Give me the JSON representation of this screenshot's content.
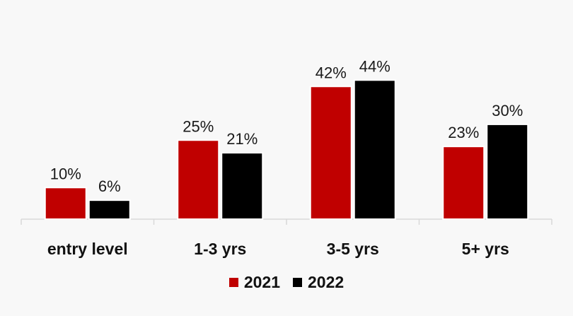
{
  "chart_data": {
    "type": "bar",
    "categories": [
      "entry level",
      "1-3 yrs",
      "3-5 yrs",
      "5+ yrs"
    ],
    "series": [
      {
        "name": "2021",
        "values": [
          10,
          25,
          42,
          23
        ],
        "labels": [
          "10%",
          "25%",
          "42%",
          "23%"
        ],
        "color": "#c00000"
      },
      {
        "name": "2022",
        "values": [
          6,
          21,
          44,
          30
        ],
        "labels": [
          "6%",
          "21%",
          "44%",
          "30%"
        ],
        "color": "#000000"
      }
    ],
    "title": "",
    "xlabel": "",
    "ylabel": "",
    "ylim": [
      0,
      50
    ],
    "grid": false,
    "legend": "bottom-center"
  }
}
